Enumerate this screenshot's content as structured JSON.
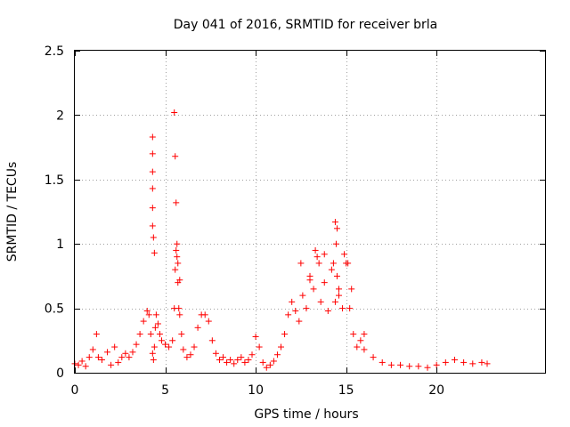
{
  "chart_data": {
    "type": "scatter",
    "title": "Day 041 of 2016, SRMTID for receiver brla",
    "xlabel": "GPS time / hours",
    "ylabel": "SRMTID / TECUs",
    "xlim": [
      0,
      26
    ],
    "ylim": [
      0,
      2.5
    ],
    "xticks": [
      0,
      5,
      10,
      15,
      20
    ],
    "yticks": [
      0,
      0.5,
      1,
      1.5,
      2,
      2.5
    ],
    "xtick_labels": [
      "0",
      "5",
      "10",
      "15",
      "20"
    ],
    "ytick_labels": [
      "0",
      "0.5",
      "1",
      "1.5",
      "2",
      "2.5"
    ],
    "grid": true,
    "marker": "+",
    "color": "#ff0000",
    "series": [
      {
        "name": "SRMTID",
        "x": [
          0.0,
          0.2,
          0.4,
          0.6,
          0.8,
          1.0,
          1.2,
          1.3,
          1.5,
          1.8,
          2.0,
          2.2,
          2.4,
          2.6,
          2.8,
          3.0,
          3.2,
          3.4,
          3.6,
          3.8,
          4.0,
          4.1,
          4.2,
          4.3,
          4.35,
          4.4,
          4.45,
          4.5,
          4.6,
          4.7,
          4.8,
          5.0,
          5.2,
          5.4,
          5.5,
          5.55,
          5.6,
          5.65,
          5.7,
          5.75,
          5.8,
          5.9,
          6.0,
          6.2,
          6.4,
          6.6,
          6.8,
          7.0,
          7.2,
          7.4,
          7.6,
          7.8,
          8.0,
          8.2,
          8.4,
          8.6,
          8.8,
          9.0,
          9.2,
          9.4,
          9.6,
          9.8,
          10.0,
          10.2,
          10.4,
          10.6,
          10.8,
          11.0,
          11.2,
          11.4,
          11.6,
          11.8,
          12.0,
          12.2,
          12.4,
          12.6,
          12.8,
          13.0,
          13.2,
          13.4,
          13.6,
          13.8,
          14.0,
          14.2,
          14.4,
          14.5,
          14.6,
          14.8,
          15.0,
          15.2,
          15.4,
          15.6,
          15.8,
          16.0,
          16.5,
          17.0,
          17.5,
          18.0,
          18.5,
          19.0,
          19.5,
          20.0,
          20.5,
          21.0,
          21.5,
          22.0,
          22.5,
          22.8,
          4.3,
          4.3,
          4.3,
          4.3,
          4.3,
          4.3,
          4.35,
          4.4,
          5.5,
          5.55,
          5.6,
          5.65,
          5.7,
          5.8,
          12.5,
          13.0,
          13.3,
          13.5,
          13.8,
          14.3,
          14.4,
          14.45,
          14.5,
          14.6,
          14.9,
          15.1,
          15.3,
          16.0
        ],
        "y": [
          0.07,
          0.06,
          0.09,
          0.05,
          0.12,
          0.18,
          0.3,
          0.12,
          0.1,
          0.16,
          0.06,
          0.2,
          0.08,
          0.12,
          0.15,
          0.12,
          0.16,
          0.22,
          0.3,
          0.4,
          0.48,
          0.45,
          0.3,
          0.15,
          0.1,
          0.2,
          0.35,
          0.45,
          0.38,
          0.3,
          0.25,
          0.22,
          0.2,
          0.25,
          0.5,
          0.8,
          0.95,
          0.9,
          0.7,
          0.5,
          0.45,
          0.3,
          0.18,
          0.12,
          0.14,
          0.2,
          0.35,
          0.45,
          0.45,
          0.4,
          0.25,
          0.15,
          0.1,
          0.12,
          0.08,
          0.1,
          0.07,
          0.1,
          0.12,
          0.08,
          0.1,
          0.14,
          0.28,
          0.2,
          0.08,
          0.04,
          0.06,
          0.09,
          0.14,
          0.2,
          0.3,
          0.45,
          0.55,
          0.48,
          0.4,
          0.6,
          0.5,
          0.75,
          0.65,
          0.9,
          0.55,
          0.7,
          0.48,
          0.8,
          0.55,
          0.75,
          0.65,
          0.5,
          0.85,
          0.5,
          0.3,
          0.2,
          0.25,
          0.18,
          0.12,
          0.08,
          0.06,
          0.06,
          0.05,
          0.05,
          0.04,
          0.06,
          0.08,
          0.1,
          0.08,
          0.07,
          0.08,
          0.07,
          1.83,
          1.7,
          1.56,
          1.43,
          1.28,
          1.14,
          1.05,
          0.93,
          2.02,
          1.68,
          1.32,
          1.0,
          0.85,
          0.72,
          0.85,
          0.72,
          0.95,
          0.85,
          0.92,
          0.85,
          1.17,
          1.0,
          1.12,
          0.6,
          0.92,
          0.85,
          0.65,
          0.3
        ]
      }
    ]
  }
}
